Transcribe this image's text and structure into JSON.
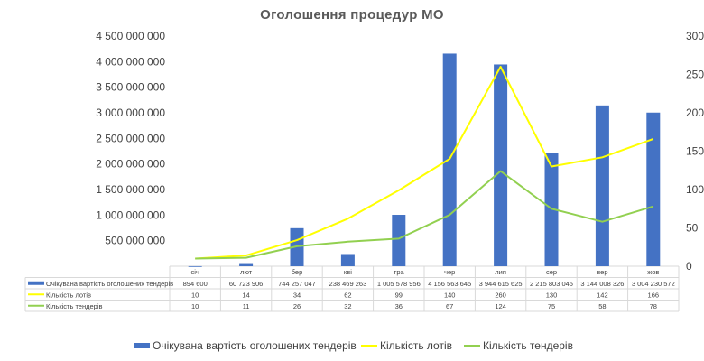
{
  "chart_data": {
    "type": "bar",
    "title": "Оголошення процедур МО",
    "categories": [
      "січ",
      "лют",
      "бер",
      "кві",
      "тра",
      "чер",
      "лип",
      "сер",
      "вер",
      "жов"
    ],
    "series": [
      {
        "name": "Очікувана вартість оголошених тендерів",
        "kind": "bar",
        "axis": "left",
        "color": "#4472C4",
        "values": [
          894600,
          60723906,
          744257047,
          238469263,
          1005578956,
          4156563645,
          3944615625,
          2215803045,
          3144008326,
          3004230572
        ],
        "labels": [
          "894 600",
          "60 723 906",
          "744 257 047",
          "238 469 263",
          "1 005 578 956",
          "4 156 563 645",
          "3 944 615 625",
          "2 215 803 045",
          "3 144 008 326",
          "3 004 230 572"
        ]
      },
      {
        "name": "Кількість лотів",
        "kind": "line",
        "axis": "right",
        "color": "#FFFF00",
        "values": [
          10,
          14,
          34,
          62,
          99,
          140,
          260,
          130,
          142,
          166
        ],
        "labels": [
          "10",
          "14",
          "34",
          "62",
          "99",
          "140",
          "260",
          "130",
          "142",
          "166"
        ]
      },
      {
        "name": "Кількість тендерів",
        "kind": "line",
        "axis": "right",
        "color": "#92D050",
        "values": [
          10,
          11,
          26,
          32,
          36,
          67,
          124,
          75,
          58,
          78
        ],
        "labels": [
          "10",
          "11",
          "26",
          "32",
          "36",
          "67",
          "124",
          "75",
          "58",
          "78"
        ]
      }
    ],
    "y_left": {
      "min": 0,
      "max": 4500000000,
      "ticks": [
        500000000,
        1000000000,
        1500000000,
        2000000000,
        2500000000,
        3000000000,
        3500000000,
        4000000000,
        4500000000
      ],
      "tick_labels": [
        "500 000 000",
        "1 000 000 000",
        "1 500 000 000",
        "2 000 000 000",
        "2 500 000 000",
        "3 000 000 000",
        "3 500 000 000",
        "4 000 000 000",
        "4 500 000 000"
      ]
    },
    "y_right": {
      "min": 0,
      "max": 300,
      "ticks": [
        0,
        50,
        100,
        150,
        200,
        250,
        300
      ],
      "tick_labels": [
        "0",
        "50",
        "100",
        "150",
        "200",
        "250",
        "300"
      ]
    },
    "grid": false,
    "legend_position": "bottom",
    "data_table": true
  }
}
